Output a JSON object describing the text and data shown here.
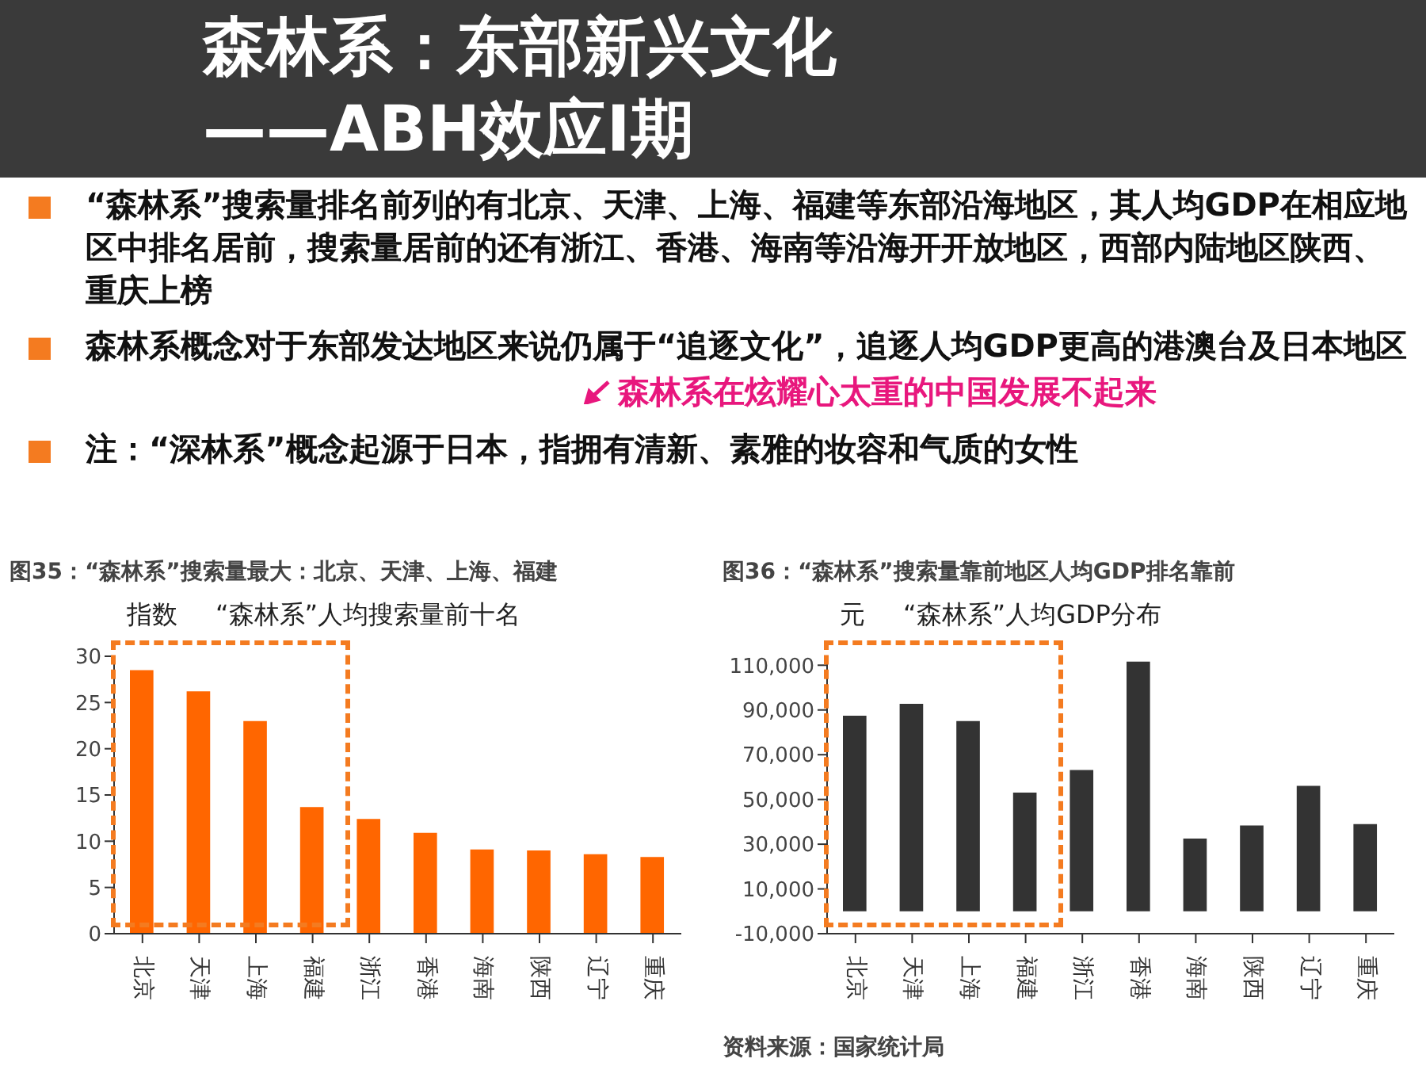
{
  "chart_data": [
    {
      "type": "other",
      "title": "森林系：东部新兴文化\n——ABH效应I期",
      "annotations": [
        "“森林系”搜索量排名前列的有北京、天津、上海、福建等东部沿海地区，其人均GDP在相应地区中排名居前，搜索量居前的还有浙江、香港、海南等沿海开开放地区，西部内陆地区陕西、重庆上榜",
        "森林系概念对于东部发达地区来说仍属于“追逐文化”，追逐人均GDP更高的港澳台及日本地区",
        "森林系在炫耀心太重的中国发展不起来",
        "注：“深林系”概念起源于日本，指拥有清新、素雅的妆容和气质的女性"
      ]
    },
    {
      "type": "bar",
      "title": "图35：“森林系”搜索量最大：北京、天津、上海、福建",
      "subtitle": "“森林系”人均搜索量前十名",
      "ylabel": "指数",
      "categories": [
        "北京",
        "天津",
        "上海",
        "福建",
        "浙江",
        "香港",
        "海南",
        "陕西",
        "辽宁",
        "重庆"
      ],
      "values": [
        28.5,
        26.2,
        23.0,
        13.7,
        12.4,
        10.9,
        9.1,
        9.0,
        8.6,
        8.3
      ],
      "color": "#ff6600",
      "ylim": [
        0,
        30
      ],
      "yticks": [
        0,
        5,
        10,
        15,
        20,
        25,
        30
      ],
      "grid": false
    },
    {
      "type": "bar",
      "title": "图36：“森林系”搜索量靠前地区人均GDP排名靠前",
      "subtitle": "“森林系”人均GDP分布",
      "ylabel": "元",
      "categories": [
        "北京",
        "天津",
        "上海",
        "福建",
        "浙江",
        "香港",
        "海南",
        "陕西",
        "辽宁",
        "重庆"
      ],
      "values": [
        87400,
        92700,
        85000,
        53100,
        63200,
        111600,
        32500,
        38400,
        56100,
        39000
      ],
      "color": "#333333",
      "ylim": [
        -10000,
        114000
      ],
      "yticks": [
        {
          "value": -10000,
          "label": "-10,000"
        },
        {
          "value": 10000,
          "label": "10,000"
        },
        {
          "value": 30000,
          "label": "30,000"
        },
        {
          "value": 50000,
          "label": "50,000"
        },
        {
          "value": 70000,
          "label": "70,000"
        },
        {
          "value": 90000,
          "label": "90,000"
        },
        {
          "value": 110000,
          "label": "110,000"
        }
      ],
      "grid": false,
      "annotations": [
        "资料来源：国家统计局"
      ]
    }
  ]
}
